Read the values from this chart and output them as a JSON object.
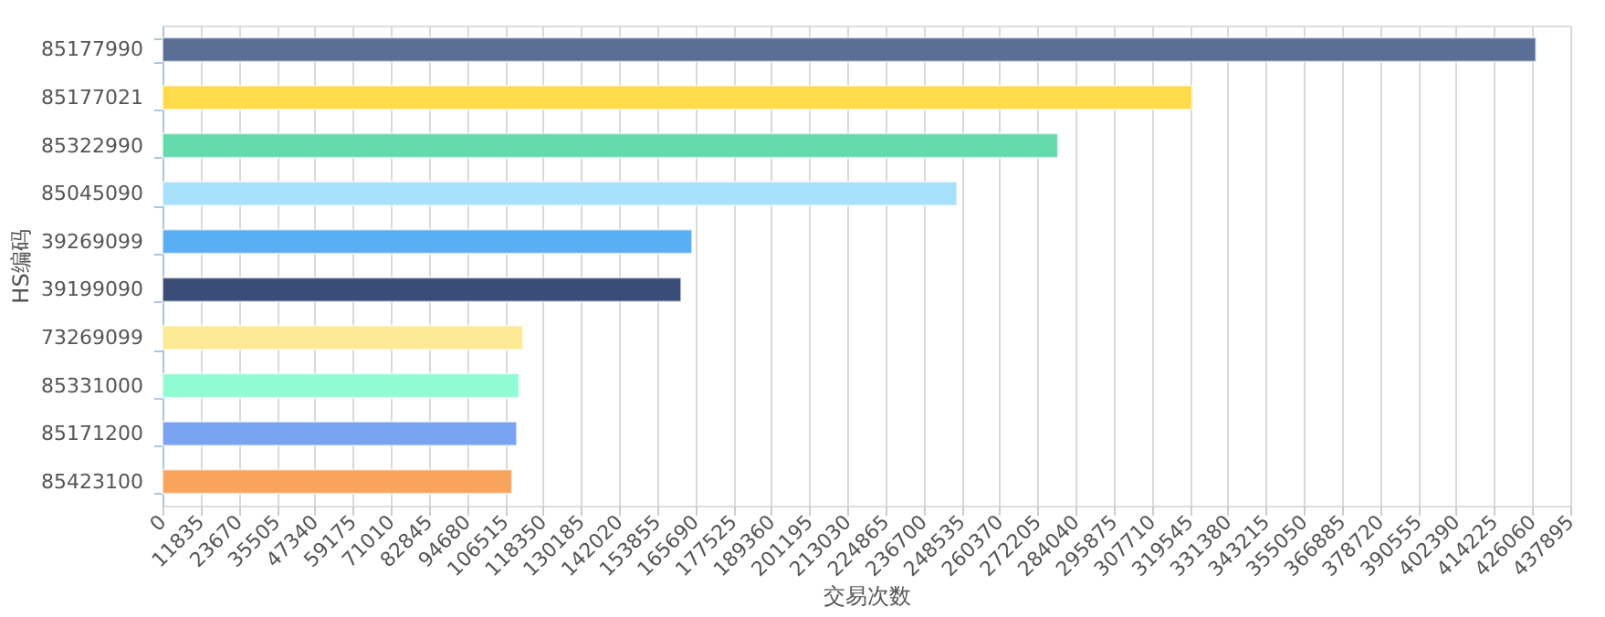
{
  "chart_data": {
    "type": "bar",
    "orientation": "horizontal",
    "xlabel": "交易次数",
    "ylabel": "HS编码",
    "categories": [
      "85177990",
      "85177021",
      "85322990",
      "85045090",
      "39269099",
      "39199090",
      "73269099",
      "85331000",
      "85171200",
      "85423100"
    ],
    "values": [
      427200,
      320300,
      278500,
      247100,
      164700,
      161300,
      112100,
      110900,
      110200,
      108700
    ],
    "colors": [
      "#5b6e96",
      "#ffdb4c",
      "#63daac",
      "#a8e1fb",
      "#5aaef3",
      "#3a4d78",
      "#fee994",
      "#91fcd3",
      "#7aa3f2",
      "#f8a45c"
    ],
    "xlim": [
      0,
      437895
    ],
    "xticks": [
      0,
      11835,
      23670,
      35505,
      47340,
      59175,
      71010,
      82845,
      94680,
      106515,
      118350,
      130185,
      142020,
      153855,
      165690,
      177525,
      189360,
      201195,
      213030,
      224865,
      236700,
      248535,
      260370,
      272205,
      284040,
      295875,
      307710,
      319545,
      331380,
      343215,
      355050,
      366885,
      378720,
      390555,
      402390,
      414225,
      426060,
      437895
    ],
    "grid": "x",
    "legend": false
  }
}
